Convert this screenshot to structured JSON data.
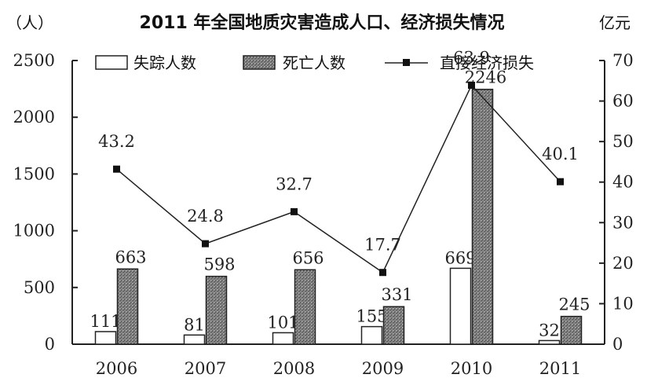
{
  "chart_data": {
    "type": "bar",
    "title": "2011 年全国地质灾害造成人口、经济损失情况",
    "left_unit": "（人）",
    "right_unit": "亿元",
    "categories": [
      "2006",
      "2007",
      "2008",
      "2009",
      "2010",
      "2011"
    ],
    "ylim_left": [
      0,
      2500
    ],
    "ylim_right": [
      0,
      70
    ],
    "yticks_left": [
      "0",
      "500",
      "1000",
      "1500",
      "2000",
      "2500"
    ],
    "yticks_right": [
      "0",
      "10",
      "20",
      "30",
      "40",
      "50",
      "60",
      "70"
    ],
    "series": [
      {
        "name": "失踪人数",
        "kind": "bar",
        "axis": "left",
        "style": "hollow",
        "values": [
          111,
          81,
          101,
          155,
          669,
          32
        ]
      },
      {
        "name": "死亡人数",
        "kind": "bar",
        "axis": "left",
        "style": "hatched",
        "values": [
          663,
          598,
          656,
          331,
          2246,
          245
        ]
      },
      {
        "name": "直接经济损失",
        "kind": "line",
        "axis": "right",
        "values": [
          43.2,
          24.8,
          32.7,
          17.7,
          63.9,
          40.1
        ]
      }
    ],
    "data_labels": {
      "missing": [
        "111",
        "81",
        "101",
        "155",
        "669",
        "32"
      ],
      "deaths": [
        "663",
        "598",
        "656",
        "331",
        "2246",
        "245"
      ],
      "loss": [
        "43.2",
        "24.8",
        "32.7",
        "17.7",
        "63.9",
        "40.1"
      ]
    },
    "legend_position": "top",
    "grid": false
  }
}
